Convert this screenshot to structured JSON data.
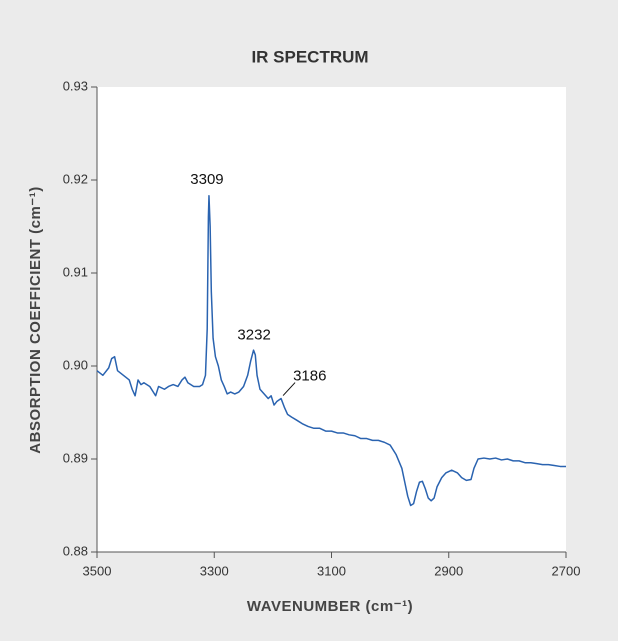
{
  "chart_data": {
    "type": "line",
    "title": "IR SPECTRUM",
    "xlabel": "WAVENUMBER (cm⁻¹)",
    "ylabel": "ABSORPTION COEFFICIENT (cm⁻¹)",
    "xlim": [
      3500,
      2700
    ],
    "xticks": [
      3500,
      3300,
      3100,
      2900,
      2700
    ],
    "ylim": [
      0.88,
      0.93
    ],
    "yticks": [
      0.88,
      0.89,
      {
        "value": 0.9,
        "label": "0.90"
      },
      0.91,
      0.92,
      0.93
    ],
    "series": [
      {
        "color": "#2a63b0",
        "x": [
          3500,
          3490,
          3480,
          3475,
          3470,
          3465,
          3455,
          3445,
          3440,
          3435,
          3430,
          3425,
          3420,
          3410,
          3400,
          3395,
          3385,
          3378,
          3370,
          3362,
          3355,
          3350,
          3345,
          3335,
          3325,
          3320,
          3315,
          3312,
          3310,
          3309,
          3307,
          3305,
          3302,
          3298,
          3293,
          3288,
          3283,
          3278,
          3272,
          3265,
          3258,
          3250,
          3243,
          3238,
          3233,
          3230,
          3227,
          3222,
          3215,
          3208,
          3203,
          3198,
          3193,
          3186,
          3180,
          3175,
          3168,
          3160,
          3150,
          3140,
          3130,
          3120,
          3110,
          3100,
          3090,
          3080,
          3070,
          3060,
          3050,
          3040,
          3030,
          3020,
          3010,
          3000,
          2990,
          2980,
          2975,
          2970,
          2965,
          2960,
          2955,
          2950,
          2945,
          2940,
          2935,
          2930,
          2925,
          2920,
          2912,
          2905,
          2895,
          2885,
          2878,
          2870,
          2862,
          2857,
          2850,
          2840,
          2830,
          2820,
          2810,
          2800,
          2790,
          2780,
          2770,
          2760,
          2750,
          2740,
          2730,
          2720,
          2710,
          2700
        ],
        "values": [
          0.8995,
          0.899,
          0.8998,
          0.9008,
          0.901,
          0.8995,
          0.899,
          0.8985,
          0.8975,
          0.8968,
          0.8985,
          0.898,
          0.8982,
          0.8978,
          0.8968,
          0.8978,
          0.8975,
          0.8978,
          0.898,
          0.8978,
          0.8985,
          0.8988,
          0.8982,
          0.8978,
          0.8978,
          0.898,
          0.899,
          0.904,
          0.916,
          0.9183,
          0.915,
          0.908,
          0.903,
          0.901,
          0.9,
          0.8985,
          0.8978,
          0.897,
          0.8972,
          0.897,
          0.8972,
          0.8978,
          0.899,
          0.9005,
          0.9017,
          0.9012,
          0.899,
          0.8975,
          0.897,
          0.8965,
          0.8968,
          0.8958,
          0.8962,
          0.8965,
          0.8955,
          0.8948,
          0.8945,
          0.8942,
          0.8938,
          0.8935,
          0.8933,
          0.8933,
          0.893,
          0.893,
          0.8928,
          0.8928,
          0.8926,
          0.8925,
          0.8922,
          0.8922,
          0.892,
          0.892,
          0.8918,
          0.8915,
          0.8905,
          0.889,
          0.8875,
          0.886,
          0.885,
          0.8852,
          0.8865,
          0.8875,
          0.8876,
          0.8868,
          0.8858,
          0.8855,
          0.8858,
          0.887,
          0.888,
          0.8885,
          0.8888,
          0.8885,
          0.888,
          0.8877,
          0.8878,
          0.889,
          0.89,
          0.8901,
          0.89,
          0.8901,
          0.8899,
          0.89,
          0.8898,
          0.8898,
          0.8896,
          0.8896,
          0.8895,
          0.8894,
          0.8894,
          0.8893,
          0.8892,
          0.8892
        ]
      }
    ],
    "annotations": [
      {
        "text": "3309",
        "x": 3309
      },
      {
        "text": "3232",
        "x": 3232
      },
      {
        "text": "3186",
        "x": 3186
      }
    ]
  }
}
